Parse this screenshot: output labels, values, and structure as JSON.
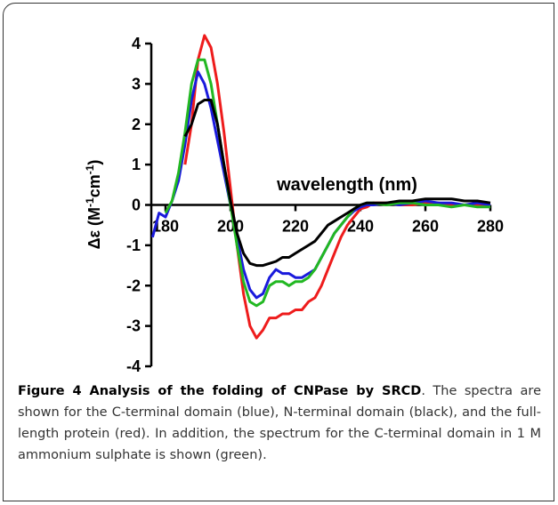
{
  "chart_data": {
    "type": "line",
    "ylabel": [
      "Δε (M",
      "-1",
      "cm",
      "-1",
      ")"
    ],
    "xlabel": "wavelength (nm)",
    "x": [
      176,
      178,
      180,
      182,
      184,
      186,
      188,
      190,
      192,
      194,
      196,
      198,
      200,
      202,
      204,
      206,
      208,
      210,
      212,
      214,
      216,
      218,
      220,
      222,
      224,
      226,
      228,
      230,
      232,
      234,
      236,
      238,
      240,
      242,
      244,
      248,
      252,
      256,
      260,
      264,
      268,
      272,
      276,
      280
    ],
    "series": [
      {
        "color": "#ee1c1c",
        "values": [
          null,
          null,
          null,
          null,
          null,
          1.0,
          2.0,
          3.6,
          4.2,
          3.9,
          3.0,
          1.8,
          0.4,
          -1.0,
          -2.2,
          -3.0,
          -3.3,
          -3.1,
          -2.8,
          -2.8,
          -2.7,
          -2.7,
          -2.6,
          -2.6,
          -2.4,
          -2.3,
          -2.0,
          -1.6,
          -1.2,
          -0.8,
          -0.5,
          -0.3,
          -0.1,
          -0.05,
          0.05,
          0.05,
          0,
          0,
          0.05,
          0.05,
          0,
          0,
          0,
          0
        ]
      },
      {
        "color": "#1a1adc",
        "values": [
          -0.8,
          -0.2,
          -0.3,
          0.1,
          0.6,
          1.5,
          2.6,
          3.3,
          3.0,
          2.4,
          1.6,
          0.8,
          0,
          -0.8,
          -1.6,
          -2.1,
          -2.3,
          -2.2,
          -1.8,
          -1.6,
          -1.7,
          -1.7,
          -1.8,
          -1.8,
          -1.7,
          -1.6,
          -1.3,
          -1.0,
          -0.7,
          -0.5,
          -0.3,
          -0.15,
          -0.05,
          0,
          0,
          0.05,
          0,
          0.05,
          0.1,
          0.05,
          0.05,
          0,
          0.05,
          0
        ]
      },
      {
        "color": "#22b822",
        "values": [
          null,
          null,
          -0.2,
          0.1,
          0.8,
          1.8,
          3.0,
          3.6,
          3.6,
          3.0,
          2.0,
          1.0,
          0,
          -1.0,
          -1.9,
          -2.4,
          -2.5,
          -2.4,
          -2.0,
          -1.9,
          -1.9,
          -2.0,
          -1.9,
          -1.9,
          -1.8,
          -1.6,
          -1.3,
          -1.0,
          -0.7,
          -0.5,
          -0.3,
          -0.1,
          0,
          0.05,
          0.05,
          0,
          0.05,
          0.05,
          0,
          0,
          -0.05,
          0,
          -0.05,
          -0.05
        ]
      },
      {
        "color": "#000000",
        "values": [
          null,
          null,
          null,
          null,
          null,
          1.7,
          2.0,
          2.5,
          2.6,
          2.6,
          2.0,
          1.0,
          0.1,
          -0.7,
          -1.2,
          -1.45,
          -1.5,
          -1.5,
          -1.45,
          -1.4,
          -1.3,
          -1.3,
          -1.2,
          -1.1,
          -1.0,
          -0.9,
          -0.7,
          -0.5,
          -0.4,
          -0.3,
          -0.2,
          -0.1,
          0,
          0.05,
          0.05,
          0.05,
          0.1,
          0.1,
          0.15,
          0.15,
          0.15,
          0.1,
          0.1,
          0.05
        ]
      }
    ],
    "xlim": [
      176,
      280
    ],
    "xticks": [
      180,
      200,
      220,
      240,
      260,
      280
    ],
    "ylim": [
      -4,
      4
    ],
    "yticks": [
      -4,
      -3,
      -2,
      -1,
      0,
      1,
      2,
      3,
      4
    ]
  },
  "caption": {
    "label": "Figure 4 Analysis of the folding of CNPase by SRCD",
    "text": ". The spectra are shown for the C-terminal domain (blue), N-terminal domain (black), and the full-length protein (red). In addition, the spectrum for the C-terminal domain in 1 M ammonium sulphate is shown (green)."
  }
}
